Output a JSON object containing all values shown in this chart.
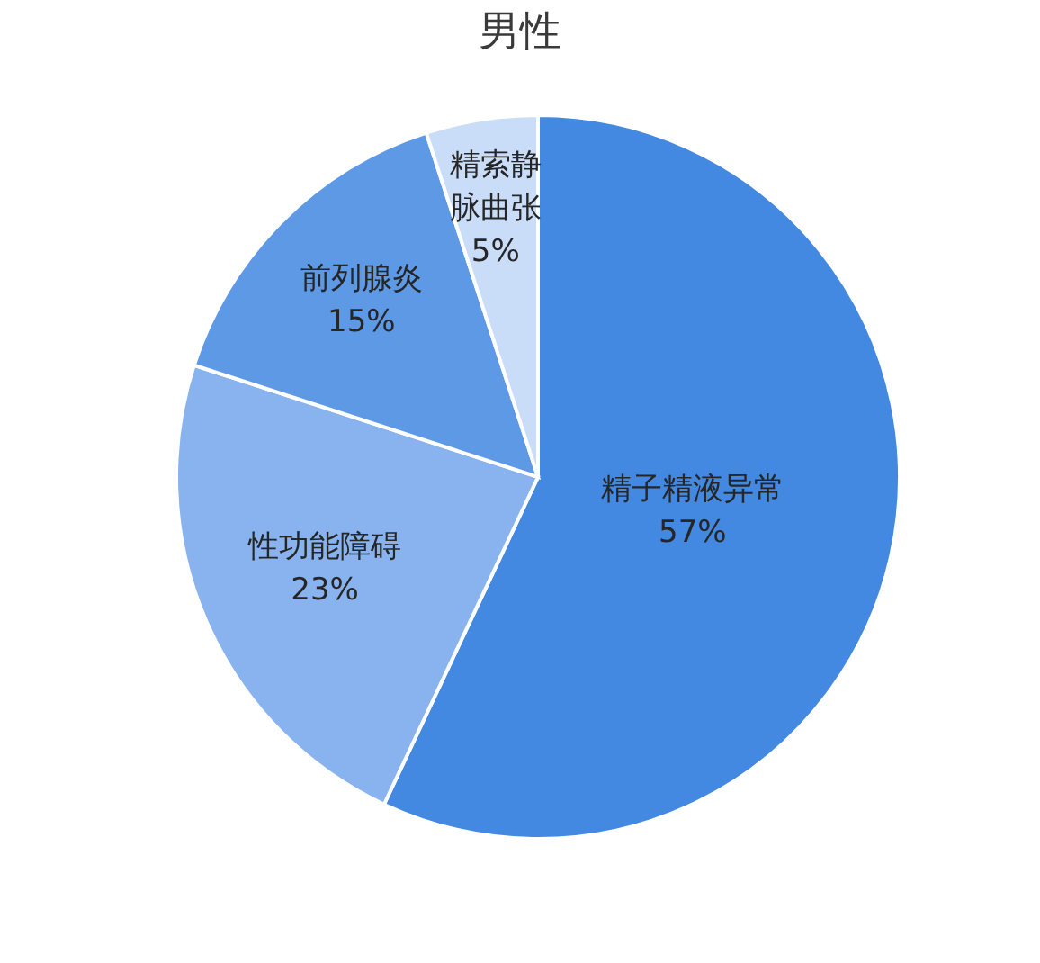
{
  "chart_data": {
    "type": "pie",
    "title": "男性",
    "categories": [
      "精子精液异常",
      "性功能障碍",
      "前列腺炎",
      "精索静脉曲张"
    ],
    "values": [
      57,
      23,
      15,
      5
    ],
    "colors": [
      "#4388e1",
      "#88b3ee",
      "#5e99e6",
      "#c9ddf8"
    ],
    "value_labels": [
      "57%",
      "23%",
      "15%",
      "5%"
    ]
  }
}
